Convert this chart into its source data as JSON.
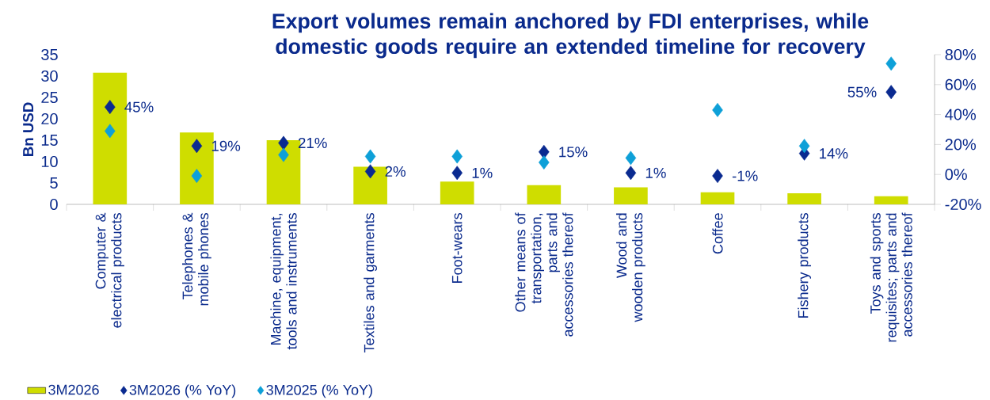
{
  "chart_data": {
    "type": "bar",
    "title": "Export volumes remain anchored by FDI enterprises, while domestic goods require an extended timeline for recovery",
    "ylabel": "Bn USD",
    "categories": [
      "Computer & electrical products",
      "Telephones & mobile phones",
      "Machine, equipment, tools and instruments",
      "Textiles and garments",
      "Foot-wears",
      "Other means of transportation, parts and accessories thereof",
      "Wood and wooden products",
      "Coffee",
      "Fishery products",
      "Toys and sports requisites; parts and accessories thereof"
    ],
    "series": [
      {
        "name": "3M2026",
        "color": "#cfdd00",
        "values": [
          30.8,
          16.8,
          15.0,
          8.8,
          5.3,
          4.5,
          4.0,
          2.8,
          2.6,
          1.9
        ]
      },
      {
        "name": "3M2026 (% YoY)",
        "type": "scatter",
        "axis": "y2",
        "color": "#0a2a90",
        "values": [
          45,
          19,
          21,
          2,
          1,
          15,
          1,
          -1,
          14,
          55
        ],
        "value_labels": [
          "45%",
          "19%",
          "21%",
          "2%",
          "1%",
          "15%",
          "1%",
          "-1%",
          "14%",
          "55%"
        ]
      },
      {
        "name": "3M2025 (% YoY)",
        "type": "scatter",
        "axis": "y2",
        "color": "#0ea0d8",
        "values": [
          29,
          -1,
          13,
          12,
          12,
          8,
          11,
          43,
          19,
          74
        ]
      }
    ],
    "ylim": [
      0,
      35
    ],
    "yticks": [
      0,
      5,
      10,
      15,
      20,
      25,
      30,
      35
    ],
    "y2lim": [
      -20,
      80
    ],
    "y2ticks": [
      {
        "value": -20,
        "label": "-20%"
      },
      {
        "value": 0,
        "label": "0%"
      },
      {
        "value": 20,
        "label": "20%"
      },
      {
        "value": 40,
        "label": "40%"
      },
      {
        "value": 60,
        "label": "60%"
      },
      {
        "value": 80,
        "label": "80%"
      }
    ],
    "legend": "bottom left",
    "marker": "diamond"
  }
}
